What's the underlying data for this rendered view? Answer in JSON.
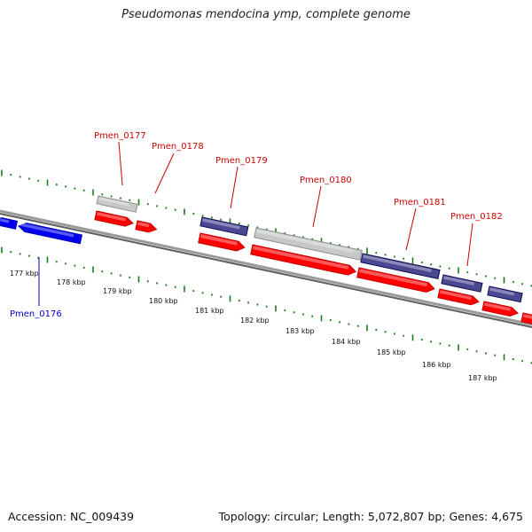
{
  "title": "Pseudomonas mendocina ymp, complete genome",
  "footer": {
    "accession": "Accession: NC_009439",
    "topology": "Topology: circular; Length: 5,072,807 bp; Genes: 4,675"
  },
  "colors": {
    "forward_cds": "#ff0000",
    "reverse_cds": "#0000ee",
    "grey_feature": "#c8c8c8",
    "purple_feature": "#4b4791",
    "ticks": "#1a7d1a",
    "backbone": "#7a7a7a",
    "label_forward": "#cc0000",
    "label_reverse": "#0000cc"
  },
  "kbp_labels": [
    "177 kbp",
    "178 kbp",
    "179 kbp",
    "180 kbp",
    "181 kbp",
    "182 kbp",
    "183 kbp",
    "184 kbp",
    "185 kbp",
    "186 kbp",
    "187 kbp"
  ],
  "genes": [
    {
      "name": "Pmen_0176",
      "strand": "reverse"
    },
    {
      "name": "Pmen_0177",
      "strand": "forward"
    },
    {
      "name": "Pmen_0178",
      "strand": "forward"
    },
    {
      "name": "Pmen_0179",
      "strand": "forward"
    },
    {
      "name": "Pmen_0180",
      "strand": "forward"
    },
    {
      "name": "Pmen_0181",
      "strand": "forward"
    },
    {
      "name": "Pmen_0182",
      "strand": "forward"
    }
  ]
}
